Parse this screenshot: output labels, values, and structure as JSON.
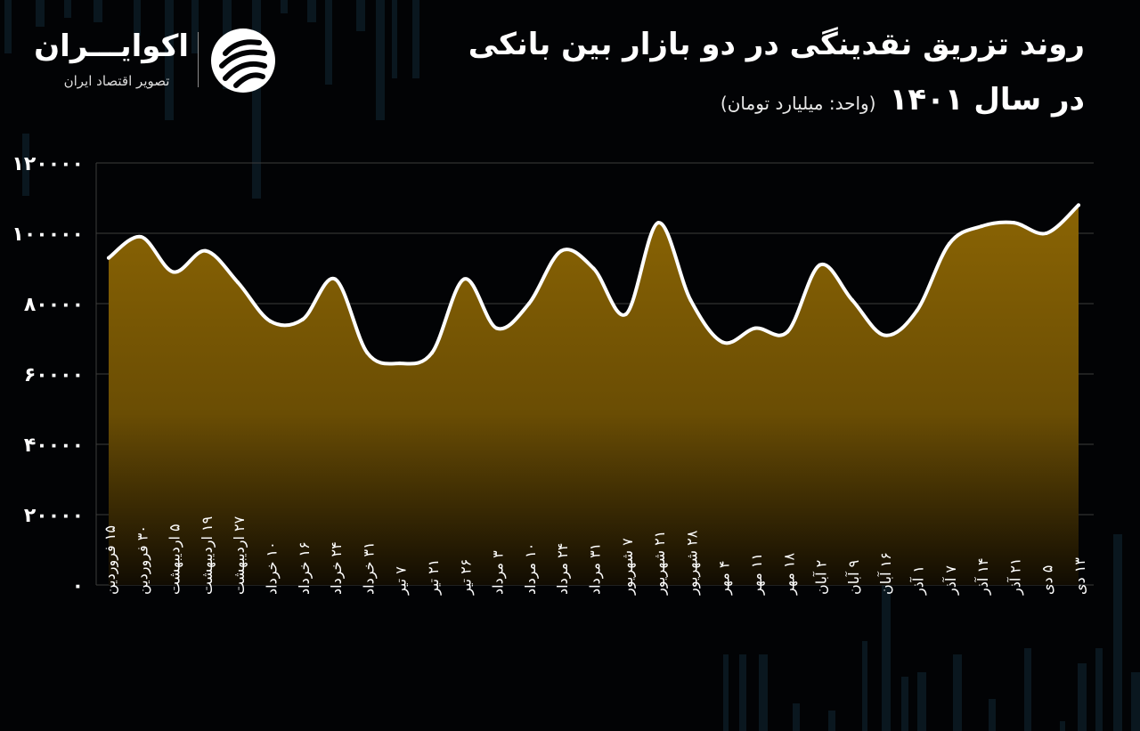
{
  "header": {
    "title": "روند تزریق نقدینگی در دو بازار بین بانکی",
    "subtitle": "در سال ۱۴۰۱",
    "unit": "(واحد: میلیارد تومان)"
  },
  "brand": {
    "name": "اکوایـــران",
    "tagline": "تصویر اقتصاد ایران",
    "logo_icon": "ecoiran-stripes-icon"
  },
  "colors": {
    "background": "#020305",
    "area_top": "#8a6404",
    "area_bottom": "#110c02",
    "line": "#ffffff",
    "grid": "#3c3c3c"
  },
  "chart_data": {
    "type": "area",
    "title": "روند تزریق نقدینگی در دو بازار بین بانکی",
    "xlabel": "",
    "ylabel": "",
    "ylim": [
      0,
      120000
    ],
    "grid": true,
    "yticks": [
      0,
      20000,
      40000,
      60000,
      80000,
      100000,
      120000
    ],
    "ytick_labels": [
      "۰",
      "۲۰۰۰۰",
      "۴۰۰۰۰",
      "۶۰۰۰۰",
      "۸۰۰۰۰",
      "۱۰۰۰۰۰",
      "۱۲۰۰۰۰"
    ],
    "categories": [
      "۱۵ فروردین",
      "۳۰ فروردین",
      "۵ اردیبهشت",
      "۱۹ اردیبهشت",
      "۲۷ اردیبهشت",
      "۱۰ خرداد",
      "۱۶ خرداد",
      "۲۴ خرداد",
      "۳۱ خرداد",
      "۷ تیر",
      "۲۱ تیر",
      "۲۶ تیر",
      "۳ مرداد",
      "۱۰ مرداد",
      "۲۴ مرداد",
      "۳۱ مرداد",
      "۷ شهریور",
      "۲۱ شهریور",
      "۲۸ شهریور",
      "۴ مهر",
      "۱۱ مهر",
      "۱۸ مهر",
      "۲ آبان",
      "۹ آبان",
      "۱۶ آبان",
      "۱ آذر",
      "۷ آذر",
      "۱۴ آذر",
      "۲۱ آذر",
      "۵ دی",
      "۱۳ دی"
    ],
    "values": [
      93000,
      99000,
      89000,
      95000,
      86000,
      75000,
      75500,
      87000,
      66000,
      63000,
      66000,
      87000,
      73000,
      80000,
      95000,
      90000,
      77000,
      103000,
      81000,
      69000,
      73000,
      72000,
      91000,
      81000,
      71000,
      78000,
      97000,
      102000,
      103000,
      100000,
      108000
    ]
  }
}
